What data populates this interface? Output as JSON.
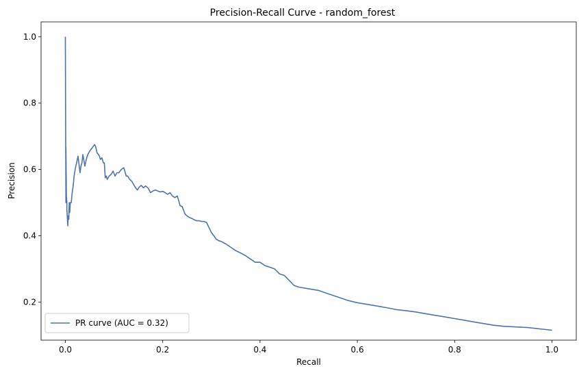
{
  "chart_data": {
    "type": "line",
    "title": "Precision-Recall Curve - random_forest",
    "xlabel": "Recall",
    "ylabel": "Precision",
    "xlim": [
      -0.05,
      1.05
    ],
    "ylim": [
      0.085,
      1.045
    ],
    "x_ticks": [
      "0.0",
      "0.2",
      "0.4",
      "0.6",
      "0.8",
      "1.0"
    ],
    "y_ticks": [
      "0.2",
      "0.4",
      "0.6",
      "0.8",
      "1.0"
    ],
    "grid": false,
    "legend_position": "lower-left",
    "series": [
      {
        "name": "PR curve (AUC = 0.32)",
        "color": "#4c72b0",
        "x": [
          0.0,
          0.001,
          0.001,
          0.002,
          0.003,
          0.003,
          0.005,
          0.006,
          0.007,
          0.008,
          0.009,
          0.01,
          0.012,
          0.014,
          0.016,
          0.018,
          0.02,
          0.023,
          0.026,
          0.03,
          0.032,
          0.034,
          0.036,
          0.04,
          0.043,
          0.046,
          0.05,
          0.055,
          0.06,
          0.062,
          0.065,
          0.068,
          0.07,
          0.072,
          0.075,
          0.078,
          0.08,
          0.082,
          0.084,
          0.086,
          0.09,
          0.094,
          0.098,
          0.102,
          0.106,
          0.11,
          0.115,
          0.12,
          0.125,
          0.128,
          0.132,
          0.136,
          0.138,
          0.14,
          0.144,
          0.148,
          0.152,
          0.156,
          0.16,
          0.165,
          0.17,
          0.175,
          0.18,
          0.185,
          0.19,
          0.195,
          0.2,
          0.205,
          0.21,
          0.215,
          0.22,
          0.225,
          0.23,
          0.236,
          0.24,
          0.246,
          0.25,
          0.255,
          0.26,
          0.265,
          0.27,
          0.275,
          0.28,
          0.285,
          0.29,
          0.295,
          0.3,
          0.305,
          0.31,
          0.315,
          0.32,
          0.33,
          0.34,
          0.35,
          0.36,
          0.37,
          0.38,
          0.39,
          0.4,
          0.41,
          0.42,
          0.43,
          0.44,
          0.45,
          0.46,
          0.47,
          0.48,
          0.5,
          0.52,
          0.54,
          0.56,
          0.58,
          0.6,
          0.62,
          0.64,
          0.66,
          0.68,
          0.7,
          0.72,
          0.74,
          0.76,
          0.78,
          0.8,
          0.82,
          0.84,
          0.86,
          0.88,
          0.9,
          0.95,
          1.0
        ],
        "y": [
          1.0,
          0.5,
          0.666,
          0.52,
          0.5,
          0.48,
          0.43,
          0.46,
          0.45,
          0.5,
          0.47,
          0.5,
          0.5,
          0.53,
          0.55,
          0.58,
          0.6,
          0.62,
          0.64,
          0.59,
          0.61,
          0.62,
          0.645,
          0.61,
          0.63,
          0.645,
          0.655,
          0.665,
          0.675,
          0.67,
          0.65,
          0.645,
          0.64,
          0.63,
          0.635,
          0.62,
          0.62,
          0.575,
          0.58,
          0.57,
          0.58,
          0.585,
          0.595,
          0.58,
          0.59,
          0.59,
          0.6,
          0.605,
          0.58,
          0.58,
          0.57,
          0.565,
          0.56,
          0.555,
          0.545,
          0.538,
          0.547,
          0.552,
          0.545,
          0.55,
          0.544,
          0.53,
          0.535,
          0.538,
          0.535,
          0.532,
          0.534,
          0.53,
          0.525,
          0.53,
          0.52,
          0.515,
          0.52,
          0.49,
          0.488,
          0.465,
          0.46,
          0.455,
          0.452,
          0.448,
          0.445,
          0.445,
          0.443,
          0.443,
          0.44,
          0.425,
          0.41,
          0.4,
          0.39,
          0.385,
          0.383,
          0.375,
          0.365,
          0.355,
          0.348,
          0.34,
          0.33,
          0.32,
          0.32,
          0.31,
          0.305,
          0.3,
          0.285,
          0.28,
          0.265,
          0.25,
          0.245,
          0.24,
          0.235,
          0.225,
          0.215,
          0.205,
          0.198,
          0.193,
          0.188,
          0.183,
          0.177,
          0.174,
          0.17,
          0.165,
          0.16,
          0.155,
          0.15,
          0.145,
          0.14,
          0.135,
          0.13,
          0.127,
          0.123,
          0.115
        ]
      }
    ]
  }
}
